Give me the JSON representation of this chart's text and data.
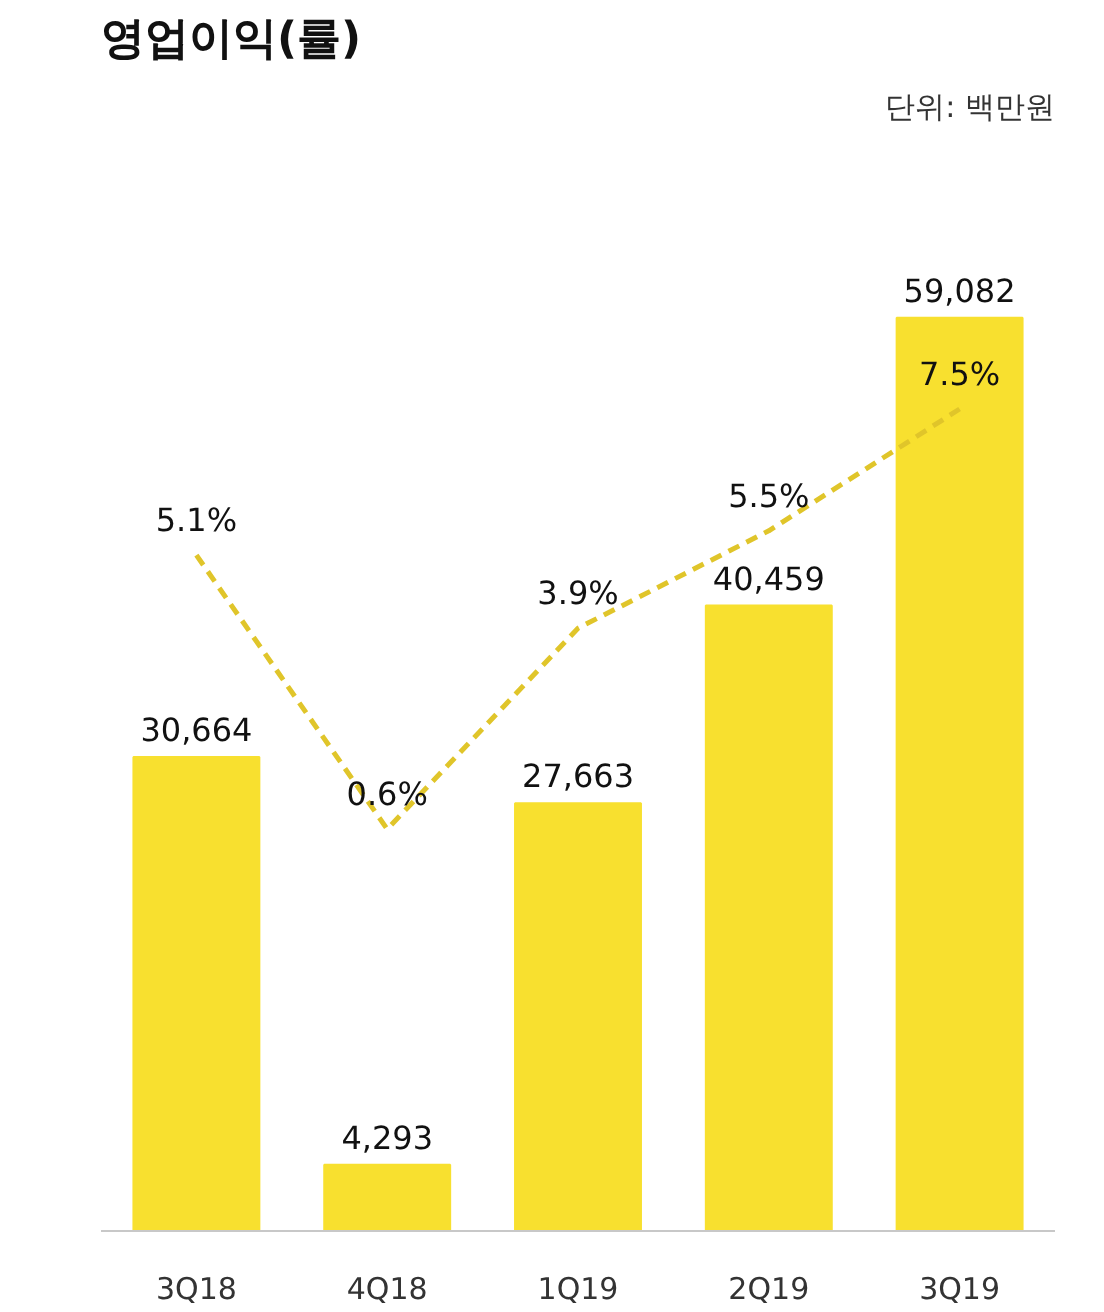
{
  "chart_data": {
    "type": "bar",
    "title": "영업이익(률)",
    "annotations": [
      "단위: 백만원"
    ],
    "categories": [
      "3Q18",
      "4Q18",
      "1Q19",
      "2Q19",
      "3Q19"
    ],
    "series": [
      {
        "color": "#f8e02f",
        "values": [
          30664,
          4293,
          27663,
          40459,
          59082
        ],
        "value_labels": [
          "30,664",
          "4,293",
          "27,663",
          "40,459",
          "59,082"
        ]
      },
      {
        "type": "line",
        "axis": "y2",
        "color": "#e0c52a",
        "line_style": "dashed",
        "values": [
          5.1,
          0.6,
          3.9,
          5.5,
          7.5
        ],
        "value_labels": [
          "5.1%",
          "0.6%",
          "3.9%",
          "5.5%",
          "7.5%"
        ]
      }
    ],
    "grid": false
  }
}
